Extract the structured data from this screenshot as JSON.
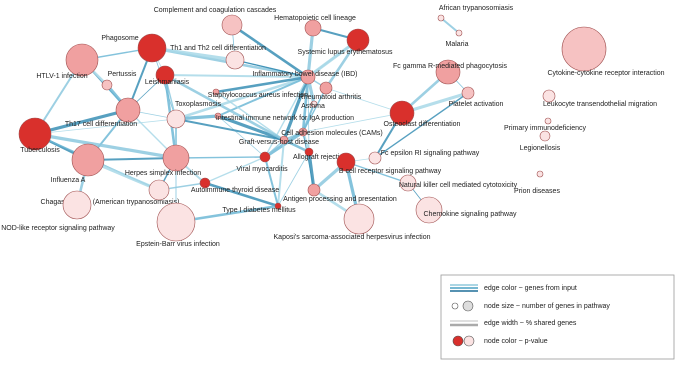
{
  "nodes": [
    {
      "label": "Complement and coagulation cascades"
    },
    {
      "label": "Hematopoietic cell lineage"
    },
    {
      "label": "African trypanosomiasis"
    },
    {
      "label": "Malaria"
    },
    {
      "label": "Phagosome"
    },
    {
      "label": "Th1 and Th2 cell differentiation"
    },
    {
      "label": "Systemic lupus erythematosus"
    },
    {
      "label": "Fc gamma R-mediated phagocytosis"
    },
    {
      "label": "Cytokine-cytokine receptor interaction"
    },
    {
      "label": "HTLV-1 infection"
    },
    {
      "label": "Pertussis"
    },
    {
      "label": "Leishmaniasis"
    },
    {
      "label": "Inflammatory bowel disease (IBD)"
    },
    {
      "label": "Rheumatoid arthritis"
    },
    {
      "label": "Staphylococcus aureus infection"
    },
    {
      "label": "Osteoclast differentiation"
    },
    {
      "label": "Platelet activation"
    },
    {
      "label": "Leukocyte transendothelial migration"
    },
    {
      "label": "Asthma"
    },
    {
      "label": "Th17 cell differentiation"
    },
    {
      "label": "Toxoplasmosis"
    },
    {
      "label": "Intestinal immune network for IgA production"
    },
    {
      "label": "Primary immunodeficiency"
    },
    {
      "label": "Tuberculosis"
    },
    {
      "label": "Cell adhesion molecules (CAMs)"
    },
    {
      "label": "Graft-versus-host disease"
    },
    {
      "label": "Legionellosis"
    },
    {
      "label": "Fc epsilon RI signaling pathway"
    },
    {
      "label": "Herpes simplex infection"
    },
    {
      "label": "Allograft rejection"
    },
    {
      "label": "Influenza A"
    },
    {
      "label": "Viral myocarditis"
    },
    {
      "label": "Autoimmune thyroid disease"
    },
    {
      "label": "B cell receptor signaling pathway"
    },
    {
      "label": "Natural killer cell mediated cytotoxicity"
    },
    {
      "label": "Prion diseases"
    },
    {
      "label": "Chagas disease (American trypanosomiasis)"
    },
    {
      "label": "Antigen processing and presentation"
    },
    {
      "label": "Type I diabetes mellitus"
    },
    {
      "label": "NOD-like receptor signaling pathway"
    },
    {
      "label": "Chemokine signaling pathway"
    },
    {
      "label": "Epstein-Barr virus infection"
    },
    {
      "label": "Kaposi's sarcoma-associated herpesvirus infection"
    }
  ],
  "legend": [
    "edge color ~ genes from input",
    "node size ~ number of genes in pathway",
    "edge width ~ % shared genes",
    "node color ~ p-value"
  ]
}
